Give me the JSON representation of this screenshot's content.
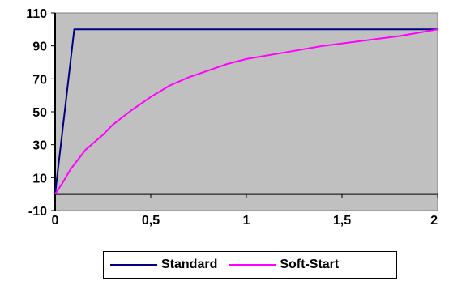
{
  "chart_data": {
    "type": "line",
    "title": "",
    "xlabel": "",
    "ylabel": "",
    "xlim": [
      0,
      2
    ],
    "ylim": [
      -10,
      110
    ],
    "x_ticks": [
      "0",
      "0,5",
      "1",
      "1,5",
      "2"
    ],
    "x_tick_values": [
      0,
      0.5,
      1,
      1.5,
      2
    ],
    "y_ticks": [
      "110",
      "90",
      "70",
      "50",
      "30",
      "10",
      "-10"
    ],
    "y_tick_values": [
      110,
      90,
      70,
      50,
      30,
      10,
      -10
    ],
    "grid": false,
    "plot_background": "#c0c0c0",
    "legend_position": "bottom",
    "series": [
      {
        "name": "Standard",
        "color": "#000080",
        "points": [
          [
            0,
            0
          ],
          [
            0.1,
            100
          ],
          [
            2,
            100
          ]
        ]
      },
      {
        "name": "Soft-Start",
        "color": "#ff00ff",
        "points": [
          [
            0,
            0
          ],
          [
            0.04,
            7
          ],
          [
            0.08,
            15
          ],
          [
            0.12,
            21
          ],
          [
            0.16,
            27
          ],
          [
            0.2,
            31
          ],
          [
            0.25,
            36
          ],
          [
            0.3,
            42
          ],
          [
            0.4,
            51
          ],
          [
            0.5,
            59
          ],
          [
            0.6,
            66
          ],
          [
            0.7,
            71
          ],
          [
            0.8,
            75
          ],
          [
            0.9,
            79
          ],
          [
            1.0,
            82
          ],
          [
            1.2,
            86
          ],
          [
            1.4,
            90
          ],
          [
            1.6,
            93
          ],
          [
            1.8,
            96
          ],
          [
            2.0,
            100
          ]
        ]
      }
    ]
  }
}
